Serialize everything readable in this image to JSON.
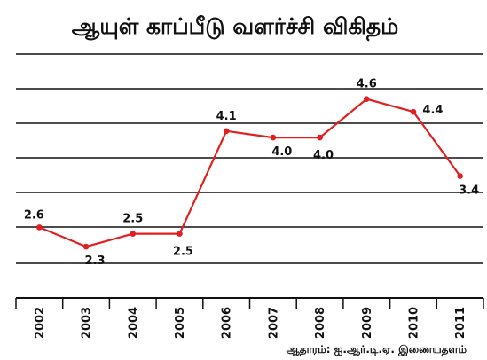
{
  "chart_data": {
    "type": "line",
    "title": "ஆயுள் காப்பீடு வளர்ச்சி விகிதம்",
    "categories": [
      "2002",
      "2003",
      "2004",
      "2005",
      "2006",
      "2007",
      "2008",
      "2009",
      "2010",
      "2011"
    ],
    "series": [
      {
        "values": [
          2.6,
          2.3,
          2.5,
          2.5,
          4.1,
          4.0,
          4.0,
          4.6,
          4.4,
          3.4
        ]
      }
    ],
    "data_labels": [
      "2.6",
      "2.3",
      "2.5",
      "2.5",
      "4.1",
      "4.0",
      "4.0",
      "4.6",
      "4.4",
      "3.4"
    ],
    "xlabel": "",
    "ylabel": "",
    "ylim": [
      1.5,
      5.3
    ],
    "grid": "horizontal",
    "tick_label_rotation": "vertical",
    "line_color": "#e02020",
    "grid_color": "#111111",
    "source": "ஆதாரம்: ஐ.ஆர்.டி.ஏ. இணையதளம்"
  }
}
